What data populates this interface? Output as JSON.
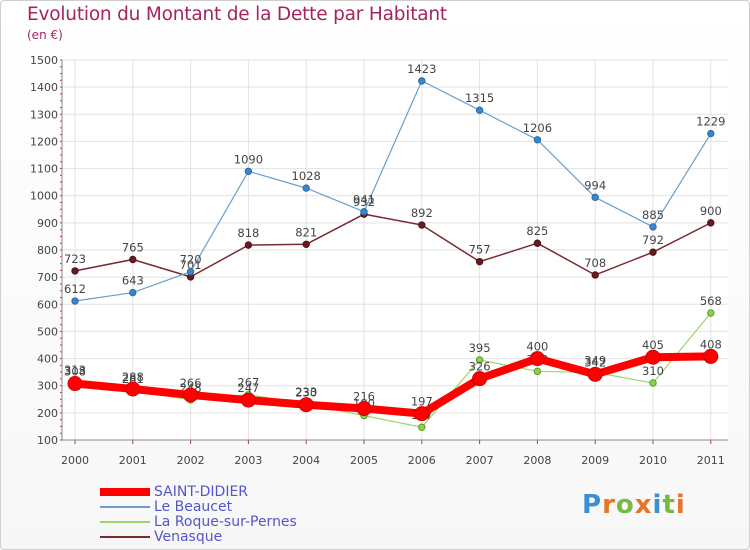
{
  "header": {
    "title": "Evolution du Montant de la Dette par Habitant",
    "subtitle": "(en €)"
  },
  "logo": {
    "text": "Proxiti",
    "letters": [
      "P",
      "r",
      "o",
      "x",
      "i",
      "t",
      "i"
    ],
    "colors": [
      "#3a8fd6",
      "#e8732a",
      "#7ab848",
      "#e8732a",
      "#3a8fd6",
      "#7ab848",
      "#e8732a"
    ]
  },
  "chart_data": {
    "type": "line",
    "title": "Evolution du Montant de la Dette par Habitant",
    "subtitle": "(en €)",
    "xlabel": "",
    "ylabel": "",
    "categories": [
      "2000",
      "2001",
      "2002",
      "2003",
      "2004",
      "2005",
      "2006",
      "2007",
      "2008",
      "2009",
      "2010",
      "2011"
    ],
    "ylim": [
      100,
      1500
    ],
    "yticks": [
      100,
      200,
      300,
      400,
      500,
      600,
      700,
      800,
      900,
      1000,
      1100,
      1200,
      1300,
      1400,
      1500
    ],
    "grid": true,
    "legend_position": "bottom-left",
    "series": [
      {
        "name": "Venasque",
        "color": "#7a2a32",
        "values": [
          723,
          765,
          701,
          818,
          821,
          932,
          892,
          757,
          825,
          708,
          792,
          900
        ]
      },
      {
        "name": "Le Beaucet",
        "color": "#6a9ecf",
        "values": [
          612,
          643,
          720,
          1090,
          1028,
          941,
          1423,
          1315,
          1206,
          994,
          885,
          1229
        ]
      },
      {
        "name": "La Roque-sur-Pernes",
        "color": "#9ad66a",
        "values": [
          313,
          281,
          248,
          267,
          233,
          190,
          147,
          395,
          353,
          349,
          310,
          568
        ]
      },
      {
        "name": "SAINT-DIDIER",
        "color": "#ff0000",
        "values": [
          308,
          288,
          266,
          247,
          230,
          216,
          197,
          326,
          400,
          342,
          405,
          408
        ]
      }
    ],
    "legend_order": [
      "SAINT-DIDIER",
      "Le Beaucet",
      "La Roque-sur-Pernes",
      "Venasque"
    ]
  }
}
